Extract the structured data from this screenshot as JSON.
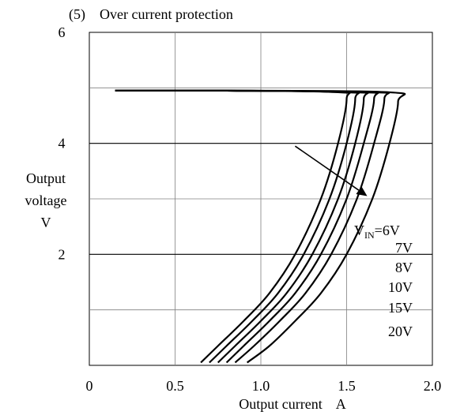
{
  "chart_data": {
    "type": "line",
    "title": "(5)    Over current protection",
    "xlabel": "Output current    A",
    "ylabel": [
      "Output",
      "voltage",
      "V"
    ],
    "xlim": [
      0,
      2.0
    ],
    "ylim": [
      0,
      6
    ],
    "x_ticks": [
      0,
      0.5,
      1.0,
      1.5,
      2.0
    ],
    "x_tick_labels": [
      "0",
      "0.5",
      "1.0",
      "1.5",
      "2.0"
    ],
    "y_ticks": [
      2,
      4,
      6
    ],
    "y_tick_labels": [
      "2",
      "4",
      "6"
    ],
    "grid": true,
    "series": [
      {
        "name": "VIN=6V",
        "x": [
          0.15,
          0.8,
          1.45,
          1.5,
          1.45,
          1.35,
          1.2,
          1.05,
          0.9,
          0.75,
          0.65
        ],
        "y": [
          4.95,
          4.95,
          4.92,
          4.8,
          4.0,
          3.0,
          2.0,
          1.3,
          0.8,
          0.35,
          0.05
        ]
      },
      {
        "name": "7V",
        "x": [
          0.15,
          0.8,
          1.5,
          1.55,
          1.5,
          1.4,
          1.25,
          1.1,
          0.95,
          0.8,
          0.7
        ],
        "y": [
          4.95,
          4.95,
          4.92,
          4.8,
          4.0,
          3.0,
          2.0,
          1.3,
          0.8,
          0.35,
          0.05
        ]
      },
      {
        "name": "8V",
        "x": [
          0.15,
          0.8,
          1.55,
          1.6,
          1.55,
          1.45,
          1.3,
          1.15,
          1.0,
          0.85,
          0.75
        ],
        "y": [
          4.95,
          4.95,
          4.92,
          4.8,
          4.0,
          3.0,
          2.0,
          1.3,
          0.8,
          0.35,
          0.05
        ]
      },
      {
        "name": "10V",
        "x": [
          0.15,
          0.8,
          1.6,
          1.66,
          1.6,
          1.5,
          1.35,
          1.2,
          1.05,
          0.9,
          0.8
        ],
        "y": [
          4.95,
          4.95,
          4.92,
          4.8,
          4.0,
          3.0,
          2.0,
          1.3,
          0.8,
          0.35,
          0.05
        ]
      },
      {
        "name": "15V",
        "x": [
          0.15,
          0.8,
          1.66,
          1.72,
          1.66,
          1.56,
          1.41,
          1.26,
          1.11,
          0.96,
          0.85
        ],
        "y": [
          4.95,
          4.95,
          4.92,
          4.8,
          4.0,
          3.0,
          2.0,
          1.3,
          0.8,
          0.35,
          0.05
        ]
      },
      {
        "name": "20V",
        "x": [
          0.15,
          0.8,
          1.75,
          1.8,
          1.75,
          1.65,
          1.5,
          1.35,
          1.2,
          1.05,
          0.92
        ],
        "y": [
          4.95,
          4.95,
          4.92,
          4.75,
          4.0,
          3.0,
          2.0,
          1.3,
          0.8,
          0.35,
          0.05
        ]
      }
    ],
    "legend": {
      "vin_main": "V",
      "vin_sub": "IN",
      "vin_value": "=6V",
      "entries": [
        "7V",
        "8V",
        "10V",
        "15V",
        "20V"
      ]
    },
    "arrow": {
      "from": [
        1.2,
        3.95
      ],
      "to": [
        1.62,
        3.05
      ]
    },
    "colors": {
      "line": "#000000",
      "grid": "#000000",
      "background": "#ffffff"
    }
  }
}
